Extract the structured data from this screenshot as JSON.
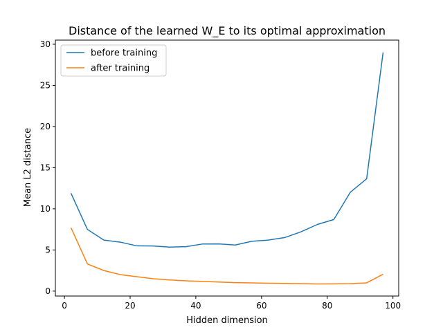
{
  "chart_data": {
    "type": "line",
    "title": "Distance of the learned W_E to its optimal approximation",
    "xlabel": "Hidden dimension",
    "ylabel": "Mean L2 distance",
    "xlim": [
      -2.75,
      101.75
    ],
    "ylim": [
      -0.6,
      30.5
    ],
    "xticks": [
      0,
      20,
      40,
      60,
      80,
      100
    ],
    "yticks": [
      0,
      5,
      10,
      15,
      20,
      25,
      30
    ],
    "grid": false,
    "legend_position": "top-left",
    "x": [
      2,
      7,
      12,
      17,
      22,
      27,
      32,
      37,
      42,
      47,
      52,
      57,
      62,
      67,
      72,
      77,
      82,
      87,
      92,
      97
    ],
    "series": [
      {
        "name": "before training",
        "color": "#1f77b4",
        "values": [
          11.9,
          7.5,
          6.2,
          5.95,
          5.5,
          5.48,
          5.35,
          5.4,
          5.72,
          5.74,
          5.6,
          6.05,
          6.2,
          6.5,
          7.2,
          8.1,
          8.7,
          12.0,
          13.65,
          29.0
        ]
      },
      {
        "name": "after training",
        "color": "#ff7f0e",
        "values": [
          7.7,
          3.3,
          2.5,
          2.0,
          1.75,
          1.5,
          1.35,
          1.25,
          1.18,
          1.1,
          1.03,
          1.0,
          0.95,
          0.93,
          0.9,
          0.87,
          0.88,
          0.9,
          1.0,
          2.05
        ]
      }
    ]
  }
}
